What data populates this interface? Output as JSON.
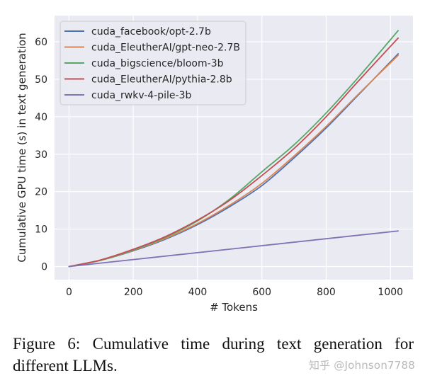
{
  "chart_data": {
    "type": "line",
    "xlabel": "# Tokens",
    "ylabel": "Cumulative GPU time (s) in text generation",
    "xlim": [
      -45,
      1070
    ],
    "ylim": [
      -3.5,
      67
    ],
    "xticks": [
      0,
      200,
      400,
      600,
      800,
      1000
    ],
    "yticks": [
      0,
      10,
      20,
      30,
      40,
      50,
      60
    ],
    "grid": true,
    "legend_position": "top-left",
    "series": [
      {
        "name": "cuda_facebook/opt-2.7b",
        "color": "#4c72b0",
        "x": [
          0,
          100,
          200,
          300,
          400,
          500,
          600,
          700,
          800,
          900,
          1024
        ],
        "y": [
          0,
          1.7,
          4.2,
          7.3,
          11.2,
          16.0,
          21.6,
          29.0,
          37.0,
          45.8,
          56.8
        ]
      },
      {
        "name": "cuda_EleutherAI/gpt-neo-2.7B",
        "color": "#dd8452",
        "x": [
          0,
          100,
          200,
          300,
          400,
          500,
          600,
          700,
          800,
          900,
          1024
        ],
        "y": [
          0,
          1.7,
          4.3,
          7.5,
          11.5,
          16.4,
          22.2,
          29.5,
          37.4,
          46.0,
          56.4
        ]
      },
      {
        "name": "cuda_bigscience/bloom-3b",
        "color": "#55a868",
        "x": [
          0,
          100,
          200,
          300,
          400,
          500,
          600,
          700,
          800,
          900,
          1024
        ],
        "y": [
          0,
          1.7,
          4.4,
          7.8,
          12.2,
          18.0,
          25.3,
          32.5,
          41.0,
          50.5,
          63.0
        ]
      },
      {
        "name": "cuda_EleutherAI/pythia-2.8b",
        "color": "#c44e52",
        "x": [
          0,
          100,
          200,
          300,
          400,
          500,
          600,
          700,
          800,
          900,
          1024
        ],
        "y": [
          0,
          1.8,
          4.6,
          8.0,
          12.4,
          17.7,
          24.3,
          31.5,
          40.0,
          49.5,
          61.0
        ]
      },
      {
        "name": "cuda_rwkv-4-pile-3b",
        "color": "#8172b3",
        "x": [
          0,
          1024
        ],
        "y": [
          0,
          9.5
        ]
      }
    ]
  },
  "caption": "Figure 6:  Cumulative time during text generation for different LLMs.",
  "watermark": "知乎 @Johnson7788"
}
